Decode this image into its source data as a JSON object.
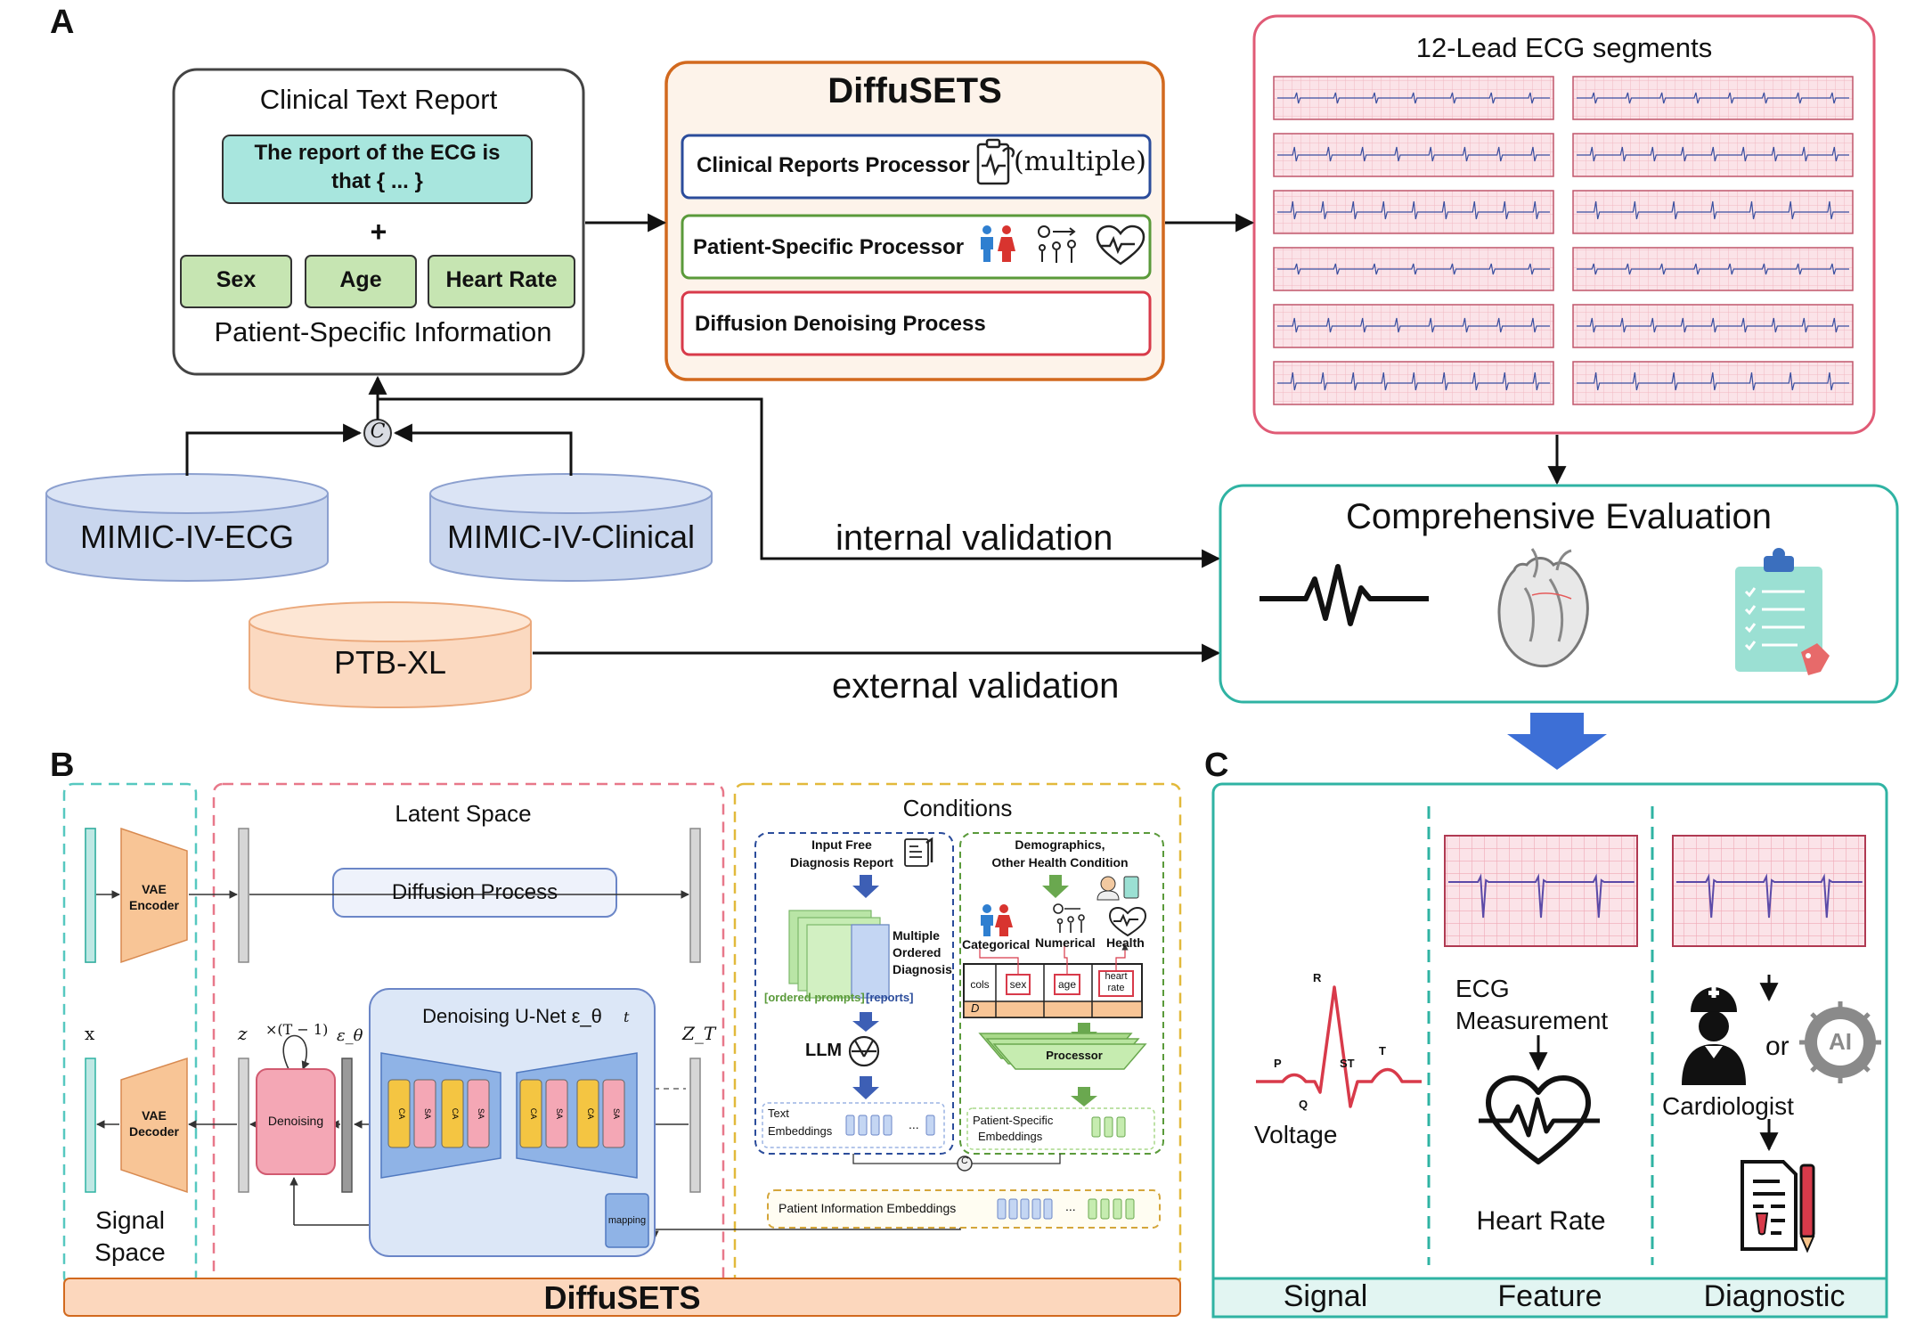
{
  "panels": {
    "a": "A",
    "b": "B",
    "c": "C"
  },
  "panel_a": {
    "clinical": {
      "title": "Clinical Text Report",
      "report_text_1": "The report of the ECG is",
      "report_text_2": "that { ... }",
      "plus": "+",
      "chips": [
        "Sex",
        "Age",
        "Heart Rate"
      ],
      "footer": "Patient-Specific Information"
    },
    "concat": "C",
    "databases": [
      "MIMIC-IV-ECG",
      "MIMIC-IV-Clinical",
      "PTB-XL"
    ],
    "model": {
      "title": "DiffuSETS",
      "rows": [
        "Clinical Reports Processor",
        "Patient-Specific Processor",
        "Diffusion Denoising Process"
      ],
      "multiple": "(multiple)"
    },
    "ecg": {
      "title": "12-Lead ECG segments"
    },
    "evaluation": {
      "title": "Comprehensive Evaluation"
    },
    "internal": "internal validation",
    "external": "external validation"
  },
  "panel_b": {
    "vae_encoder_1": "VAE",
    "vae_encoder_2": "Encoder",
    "vae_decoder_1": "VAE",
    "vae_decoder_2": "Decoder",
    "x": "x",
    "signal_space_1": "Signal",
    "signal_space_2": "Space",
    "latent_space": "Latent Space",
    "diffusion_process": "Diffusion Process",
    "z": "z",
    "z_t": "Z_T",
    "repeat": "×(T − 1)",
    "eps": "ε_θ",
    "t": "t",
    "denoising": "Denoising",
    "unet": "Denoising U-Net ε_θ",
    "block_labels": [
      "CA",
      "SA"
    ],
    "mapping": "mapping",
    "footer": "DiffuSETS",
    "conditions": {
      "title": "Conditions",
      "left_head_1": "Input Free",
      "left_head_2": "Diagnosis Report",
      "multiple_1": "Multiple",
      "multiple_2": "Ordered",
      "multiple_3": "Diagnosis",
      "ordered_prompts": "[ordered prompts]",
      "reports": "[reports]",
      "llm": "LLM",
      "text_emb_1": "Text",
      "text_emb_2": "Embeddings",
      "right_head_1": "Demographics,",
      "right_head_2": "Other Health Condition",
      "categories": [
        "Categorical",
        "Numerical",
        "Health"
      ],
      "table_cols": "cols",
      "table_d": "D",
      "table_cells": [
        "sex",
        "age",
        "heart",
        "rate"
      ],
      "processor": "Processor",
      "ps_emb_1": "Patient-Specific",
      "ps_emb_2": "Embeddings",
      "patient_info": "Patient Information Embeddings",
      "ellipsis": "...",
      "concat": "C"
    }
  },
  "panel_c": {
    "wave_labels": [
      "R",
      "P",
      "ST",
      "T",
      "Q"
    ],
    "voltage": "Voltage",
    "ecg_measurement_1": "ECG",
    "ecg_measurement_2": "Measurement",
    "heart_rate": "Heart Rate",
    "or": "or",
    "ai": "AI",
    "cardiologist": "Cardiologist",
    "footer": [
      "Signal",
      "Feature",
      "Diagnostic"
    ]
  },
  "colors": {
    "orange": "#d2691e",
    "teal": "#2fb3a3",
    "blue": "#2b4c9b",
    "green": "#5a9a3a",
    "red": "#d83a4a",
    "pink": "#e05a75",
    "gold": "#e2b93b",
    "ecg_grid": "#f2b8c2",
    "cylinder_blue": "#c9d6ee",
    "cylinder_orange": "#fbd9c0",
    "chip_green": "#c6e5b2",
    "chip_teal": "#a8e6de",
    "arrow_blue": "#3d6fd6"
  }
}
